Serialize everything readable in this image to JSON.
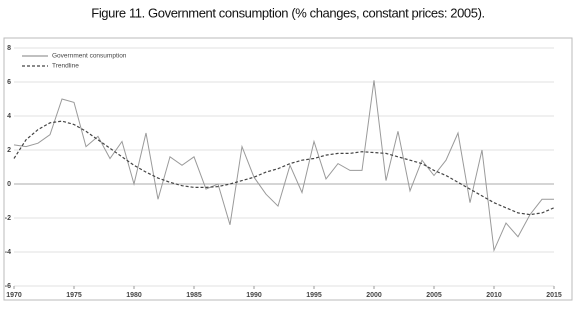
{
  "chart_data": {
    "type": "line",
    "title": "Figure 11. Government consumption (% changes, constant prices: 2005).",
    "x": [
      1970,
      1971,
      1972,
      1973,
      1974,
      1975,
      1976,
      1977,
      1978,
      1979,
      1980,
      1981,
      1982,
      1983,
      1984,
      1985,
      1986,
      1987,
      1988,
      1989,
      1990,
      1991,
      1992,
      1993,
      1994,
      1995,
      1996,
      1997,
      1998,
      1999,
      2000,
      2001,
      2002,
      2003,
      2004,
      2005,
      2006,
      2007,
      2008,
      2009,
      2010,
      2011,
      2012,
      2013,
      2014,
      2015
    ],
    "series": [
      {
        "name": "Government consumption",
        "color": "#9a9a9a",
        "dash": false,
        "values": [
          2.3,
          2.2,
          2.4,
          2.9,
          5.0,
          4.8,
          2.2,
          2.8,
          1.5,
          2.5,
          0.0,
          3.0,
          -0.9,
          1.6,
          1.1,
          1.6,
          -0.3,
          0.0,
          -2.4,
          2.2,
          0.4,
          -0.6,
          -1.3,
          1.1,
          -0.5,
          2.5,
          0.3,
          1.2,
          0.8,
          0.8,
          6.1,
          0.2,
          3.1,
          -0.4,
          1.4,
          0.5,
          1.4,
          3.0,
          -1.1,
          2.0,
          -3.9,
          -2.3,
          -3.1,
          -1.8,
          -0.9,
          -0.9
        ]
      },
      {
        "name": "Trendline",
        "color": "#444444",
        "dash": true,
        "values": [
          1.5,
          2.6,
          3.2,
          3.6,
          3.7,
          3.5,
          3.1,
          2.6,
          2.1,
          1.6,
          1.1,
          0.7,
          0.35,
          0.1,
          -0.1,
          -0.2,
          -0.2,
          -0.15,
          0.0,
          0.2,
          0.4,
          0.7,
          0.9,
          1.2,
          1.4,
          1.5,
          1.7,
          1.8,
          1.8,
          1.9,
          1.85,
          1.8,
          1.6,
          1.4,
          1.2,
          0.8,
          0.5,
          0.1,
          -0.3,
          -0.7,
          -1.1,
          -1.4,
          -1.7,
          -1.8,
          -1.7,
          -1.4
        ]
      }
    ],
    "xlim": [
      1970,
      2015
    ],
    "xticks": [
      1970,
      1975,
      1980,
      1985,
      1990,
      1995,
      2000,
      2005,
      2010,
      2015
    ],
    "ylim": [
      -6,
      8
    ],
    "yticks": [
      -6,
      -4,
      -2,
      0,
      2,
      4,
      6,
      8
    ],
    "grid": true,
    "legend": "top-left"
  }
}
